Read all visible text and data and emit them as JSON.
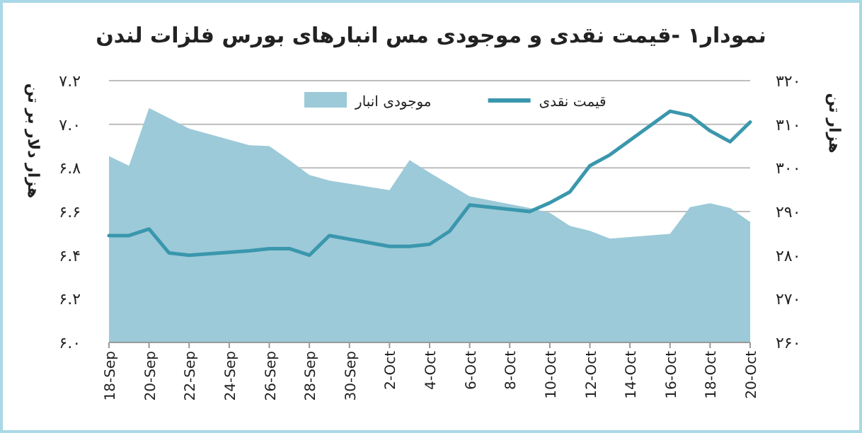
{
  "chart_data": {
    "type": "line",
    "title": "نمودار۱ -قیمت نقدی و موجودی مس انبارهای بورس فلزات لندن",
    "ylabel": "هزار دلار بر تن",
    "y2label": "هزار تن",
    "xlim": [
      "--09-18",
      "--10-20"
    ],
    "xticks": [
      {
        "value": "--09-18",
        "label": "18-Sep"
      },
      {
        "value": "--09-20",
        "label": "20-Sep"
      },
      {
        "value": "--09-22",
        "label": "22-Sep"
      },
      {
        "value": "--09-24",
        "label": "24-Sep"
      },
      {
        "value": "--09-26",
        "label": "26-Sep"
      },
      {
        "value": "--09-28",
        "label": "28-Sep"
      },
      {
        "value": "--09-30",
        "label": "30-Sep"
      },
      {
        "value": "--10-02",
        "label": "2-Oct"
      },
      {
        "value": "--10-04",
        "label": "4-Oct"
      },
      {
        "value": "--10-06",
        "label": "6-Oct"
      },
      {
        "value": "--10-08",
        "label": "8-Oct"
      },
      {
        "value": "--10-10",
        "label": "10-Oct"
      },
      {
        "value": "--10-12",
        "label": "12-Oct"
      },
      {
        "value": "--10-14",
        "label": "14-Oct"
      },
      {
        "value": "--10-16",
        "label": "16-Oct"
      },
      {
        "value": "--10-18",
        "label": "18-Oct"
      },
      {
        "value": "--10-20",
        "label": "20-Oct"
      }
    ],
    "ylim": [
      6.0,
      7.2
    ],
    "yticks": [
      {
        "value": 6.0,
        "label": "۶.۰"
      },
      {
        "value": 6.2,
        "label": "۶.۲"
      },
      {
        "value": 6.4,
        "label": "۶.۴"
      },
      {
        "value": 6.6,
        "label": "۶.۶"
      },
      {
        "value": 6.8,
        "label": "۶.۸"
      },
      {
        "value": 7.0,
        "label": "۷.۰"
      },
      {
        "value": 7.2,
        "label": "۷.۲"
      }
    ],
    "y2lim": [
      260,
      320
    ],
    "y2ticks": [
      {
        "value": 260,
        "label": "۲۶۰"
      },
      {
        "value": 270,
        "label": "۲۷۰"
      },
      {
        "value": 280,
        "label": "۲۸۰"
      },
      {
        "value": 290,
        "label": "۲۹۰"
      },
      {
        "value": 300,
        "label": "۳۰۰"
      },
      {
        "value": 310,
        "label": "۳۱۰"
      },
      {
        "value": 320,
        "label": "۳۲۰"
      }
    ],
    "x": [
      "--09-18",
      "--09-19",
      "--09-20",
      "--09-21",
      "--09-22",
      "--09-25",
      "--09-26",
      "--09-27",
      "--09-28",
      "--09-29",
      "--10-02",
      "--10-03",
      "--10-04",
      "--10-05",
      "--10-06",
      "--10-09",
      "--10-10",
      "--10-11",
      "--10-12",
      "--10-13",
      "--10-16",
      "--10-17",
      "--10-18",
      "--10-19",
      "--10-20"
    ],
    "series": [
      {
        "name": "موجودی انبار",
        "type": "area",
        "axis": "y2",
        "color": "#9ccad8",
        "values": [
          302.7,
          300.5,
          313.7,
          311.4,
          309.0,
          305.2,
          305.0,
          301.8,
          298.4,
          297.1,
          294.9,
          301.8,
          298.9,
          296.2,
          293.5,
          290.8,
          289.7,
          286.7,
          285.6,
          283.8,
          284.9,
          291.0,
          291.9,
          290.8,
          287.6
        ]
      },
      {
        "name": "قیمت نقدی",
        "type": "line",
        "axis": "y",
        "color": "#3a97ad",
        "values": [
          6.49,
          6.49,
          6.52,
          6.41,
          6.4,
          6.42,
          6.43,
          6.43,
          6.4,
          6.49,
          6.44,
          6.44,
          6.45,
          6.51,
          6.63,
          6.6,
          6.64,
          6.69,
          6.81,
          6.86,
          7.06,
          7.04,
          6.97,
          6.92,
          7.01
        ]
      }
    ],
    "grid": "y",
    "legend": "top",
    "marker": "none",
    "line_style": "solid"
  }
}
